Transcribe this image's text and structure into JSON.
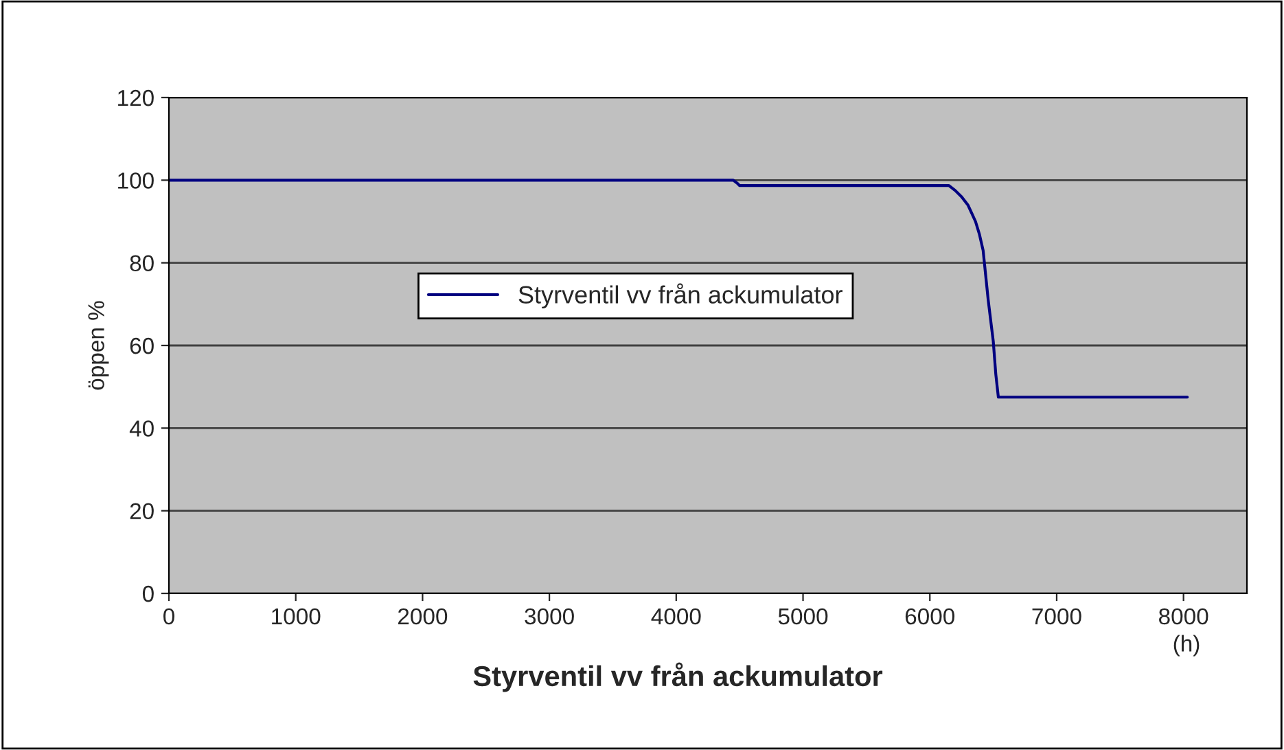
{
  "chart_data": {
    "type": "line",
    "xlabel": "Styrventil vv från ackumulator",
    "ylabel": "öppen %",
    "annotations": [
      "(h)"
    ],
    "series": [
      {
        "name": "Styrventil vv från ackumulator",
        "color": "#000080",
        "x": [
          0,
          4450,
          4480,
          4500,
          6150,
          6200,
          6250,
          6300,
          6330,
          6360,
          6390,
          6420,
          6440,
          6460,
          6480,
          6500,
          6520,
          6540,
          8030
        ],
        "values": [
          100,
          100,
          99.3,
          98.7,
          98.7,
          97.5,
          96,
          94,
          92,
          90,
          87,
          83,
          77,
          71,
          66,
          61,
          53,
          47.5,
          47.5
        ]
      }
    ],
    "xlim": [
      0,
      8500
    ],
    "xticks": [
      0,
      1000,
      2000,
      3000,
      4000,
      5000,
      6000,
      7000,
      8000
    ],
    "ylim": [
      0,
      120
    ],
    "yticks": [
      0,
      20,
      40,
      60,
      80,
      100,
      120
    ],
    "grid": "y",
    "legend": "left",
    "line_style": "solid",
    "marker": "none"
  }
}
